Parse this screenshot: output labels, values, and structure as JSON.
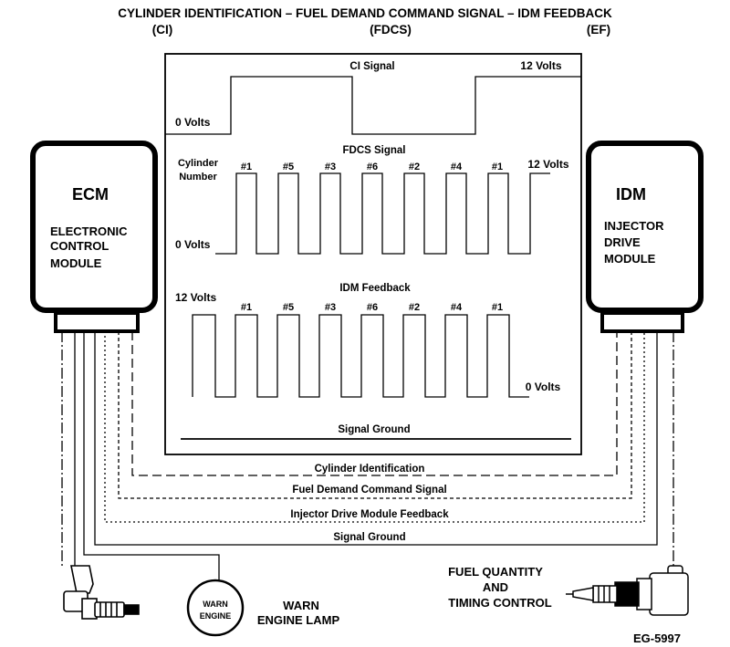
{
  "title": {
    "main": "CYLINDER IDENTIFICATION – FUEL DEMAND COMMAND SIGNAL – IDM FEEDBACK",
    "abbr_ci": "(CI)",
    "abbr_fdcs": "(FDCS)",
    "abbr_ef": "(EF)"
  },
  "ecm": {
    "abbr": "ECM",
    "line1": "ELECTRONIC",
    "line2": "CONTROL",
    "line3": "MODULE"
  },
  "idm": {
    "abbr": "IDM",
    "line1": "INJECTOR",
    "line2": "DRIVE",
    "line3": "MODULE"
  },
  "ci_panel": {
    "label": "CI Signal",
    "high": "12 Volts",
    "low": "0 Volts"
  },
  "fdcs_panel": {
    "label": "FDCS Signal",
    "cyl_line1": "Cylinder",
    "cyl_line2": "Number",
    "high": "12 Volts",
    "low": "0 Volts",
    "cylinders": [
      "#1",
      "#5",
      "#3",
      "#6",
      "#2",
      "#4",
      "#1"
    ]
  },
  "idm_panel": {
    "label": "IDM Feedback",
    "high": "12 Volts",
    "low": "0 Volts",
    "cylinders": [
      "#1",
      "#5",
      "#3",
      "#6",
      "#2",
      "#4",
      "#1"
    ]
  },
  "signal_ground_panel": "Signal Ground",
  "buses": {
    "cylinder_identification": "Cylinder Identification",
    "fuel_demand": "Fuel Demand Command Signal",
    "idm_feedback": "Injector Drive Module Feedback",
    "signal_ground": "Signal Ground"
  },
  "lamp": {
    "icon_line1": "WARN",
    "icon_line2": "ENGINE",
    "label_line1": "WARN",
    "label_line2": "ENGINE LAMP"
  },
  "injector": {
    "line1": "FUEL QUANTITY",
    "line2": "AND",
    "line3": "TIMING CONTROL"
  },
  "figure_id": "EG-5997"
}
